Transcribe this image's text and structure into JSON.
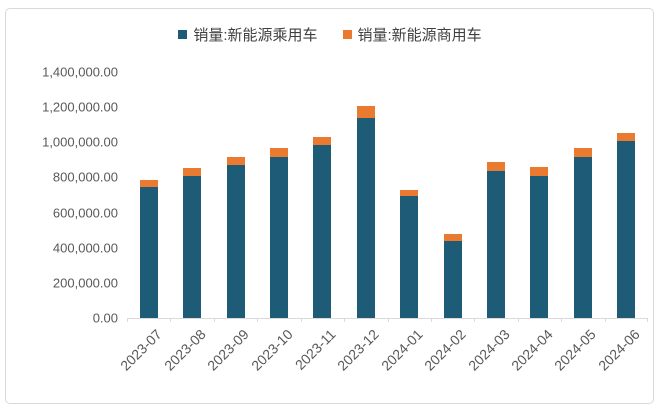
{
  "frame": {
    "border_color": "#D9D9D9",
    "background": "#FFFFFF"
  },
  "chart_data": {
    "type": "bar",
    "stacked": true,
    "categories": [
      "2023-07",
      "2023-08",
      "2023-09",
      "2023-10",
      "2023-11",
      "2023-12",
      "2024-01",
      "2024-02",
      "2024-03",
      "2024-04",
      "2024-05",
      "2024-06"
    ],
    "series": [
      {
        "name": "销量:新能源乘用车",
        "color": "#1E5B77",
        "values": [
          747000,
          807000,
          868000,
          916000,
          985000,
          1137000,
          693000,
          440000,
          836000,
          807000,
          916000,
          1007000
        ]
      },
      {
        "name": "销量:新能源商用车",
        "color": "#E97A2F",
        "values": [
          38000,
          48000,
          47000,
          50000,
          48000,
          67000,
          38000,
          38000,
          51000,
          51000,
          50000,
          48000
        ]
      }
    ],
    "xlabel": "",
    "ylabel": "",
    "ylim": [
      0,
      1400000
    ],
    "ytick_step": 200000,
    "ytick_labels": [
      "0.00",
      "200,000.00",
      "400,000.00",
      "600,000.00",
      "800,000.00",
      "1,000,000.00",
      "1,200,000.00",
      "1,400,000.00"
    ],
    "grid": false,
    "legend_position": "top-center",
    "axis_color": "#D9D9D9",
    "label_color": "#595959"
  }
}
